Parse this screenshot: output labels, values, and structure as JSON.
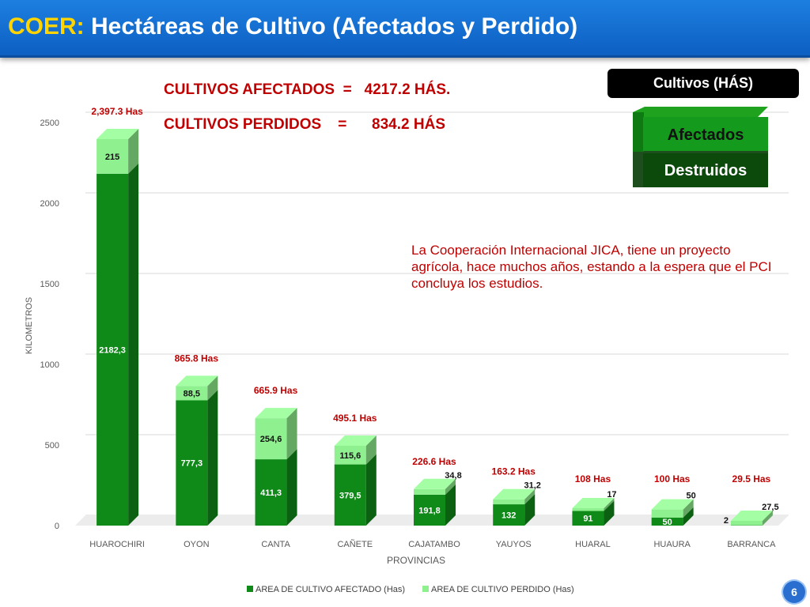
{
  "header": {
    "title_prefix": "COER:",
    "title_main": " Hectáreas de Cultivo (Afectados y Perdido)"
  },
  "stats": {
    "afectados_label": "CULTIVOS AFECTADOS  =   4217.2 HÁS.",
    "perdidos_label": "CULTIVOS PERDIDOS    =      834.2 HÁS"
  },
  "side_legend": {
    "title": "Cultivos (HÁS)",
    "afectados": "Afectados",
    "destruidos": "Destruidos"
  },
  "note": "La Cooperación Internacional JICA, tiene un proyecto agrícola, hace muchos años, estando a la espera que el PCI concluya los estudios.",
  "page_number": "6",
  "colors": {
    "title_bg": "#1570d6",
    "accent_yellow": "#ffd400",
    "red_text": "#c00000",
    "afectado": "#0f8a18",
    "perdido": "#8ff08f"
  },
  "chart_data": {
    "type": "bar",
    "stacked": true,
    "xlabel": "PROVINCIAS",
    "ylabel": "KILOMETROS",
    "ylim": [
      0,
      2500
    ],
    "yticks": [
      0,
      500,
      1000,
      1500,
      2000,
      2500
    ],
    "grid": true,
    "legend_position": "bottom",
    "categories": [
      "HUAROCHIRI",
      "OYON",
      "CANTA",
      "CAÑETE",
      "CAJATAMBO",
      "YAUYOS",
      "HUARAL",
      "HUAURA",
      "BARRANCA"
    ],
    "series": [
      {
        "name": "AREA DE CULTIVO AFECTADO (Has)",
        "color": "#0f8a18",
        "values": [
          2182.3,
          777.3,
          411.3,
          379.5,
          191.8,
          132,
          91,
          50,
          2
        ],
        "labels": [
          "2182,3",
          "777,3",
          "411,3",
          "379,5",
          "191,8",
          "132",
          "91",
          "50",
          "2"
        ]
      },
      {
        "name": "AREA DE CULTIVO PERDIDO (Has)",
        "color": "#8ff08f",
        "values": [
          215,
          88.5,
          254.6,
          115.6,
          34.8,
          31.2,
          17,
          50,
          27.5
        ],
        "labels": [
          "215",
          "88,5",
          "254,6",
          "115,6",
          "34,8",
          "31,2",
          "17",
          "50",
          "27,5"
        ]
      }
    ],
    "totals": [
      "2,397.3 Has",
      "865.8 Has",
      "665.9 Has",
      "495.1 Has",
      "226.6 Has",
      "163.2 Has",
      "108 Has",
      "100 Has",
      "29.5 Has"
    ]
  }
}
